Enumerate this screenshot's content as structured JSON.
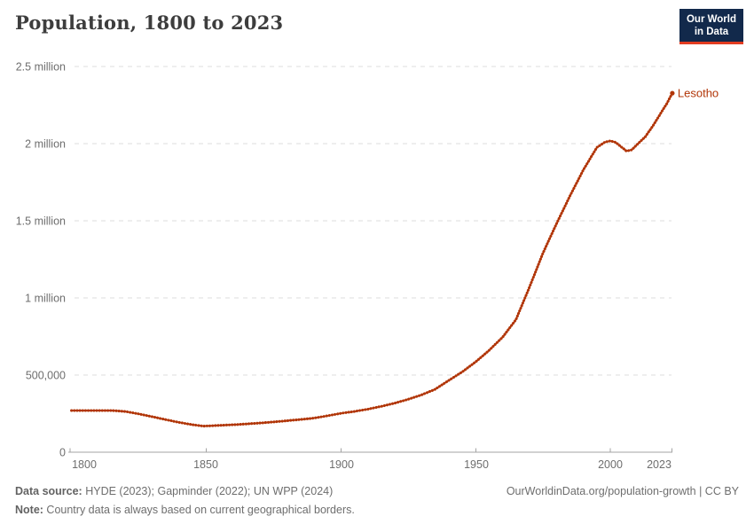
{
  "header": {
    "title": "Population, 1800 to 2023",
    "logo": {
      "line1": "Our World",
      "line2": "in Data"
    }
  },
  "chart_data": {
    "type": "line",
    "title": "Population, 1800 to 2023",
    "xlabel": "",
    "ylabel": "",
    "x_range": [
      1800,
      2023
    ],
    "y_range": [
      0,
      2500000
    ],
    "grid": "horizontal dashed",
    "legend_position": "end-of-line label",
    "x_tick_labels": [
      "1800",
      "1850",
      "1900",
      "1950",
      "2000",
      "2023"
    ],
    "y_tick_labels": [
      "2.5 million",
      "2 million",
      "1.5 million",
      "1 million",
      "500,000",
      "0"
    ],
    "y_tick_values": [
      2500000,
      2000000,
      1500000,
      1000000,
      500000,
      0
    ],
    "line_color": "#b13507",
    "series": [
      {
        "name": "Lesotho",
        "color": "#b13507",
        "points": [
          [
            1800,
            270000
          ],
          [
            1805,
            270000
          ],
          [
            1810,
            270000
          ],
          [
            1815,
            270000
          ],
          [
            1820,
            264000
          ],
          [
            1825,
            248000
          ],
          [
            1830,
            230000
          ],
          [
            1835,
            211000
          ],
          [
            1840,
            193000
          ],
          [
            1845,
            178000
          ],
          [
            1849,
            169000
          ],
          [
            1855,
            174000
          ],
          [
            1860,
            178000
          ],
          [
            1865,
            183000
          ],
          [
            1870,
            189000
          ],
          [
            1875,
            196000
          ],
          [
            1880,
            204000
          ],
          [
            1885,
            212000
          ],
          [
            1890,
            221000
          ],
          [
            1895,
            236000
          ],
          [
            1900,
            252000
          ],
          [
            1905,
            264000
          ],
          [
            1910,
            279000
          ],
          [
            1915,
            297000
          ],
          [
            1920,
            318000
          ],
          [
            1925,
            343000
          ],
          [
            1930,
            372000
          ],
          [
            1935,
            408000
          ],
          [
            1940,
            465000
          ],
          [
            1945,
            520000
          ],
          [
            1950,
            585000
          ],
          [
            1955,
            660000
          ],
          [
            1960,
            745000
          ],
          [
            1965,
            860000
          ],
          [
            1970,
            1070000
          ],
          [
            1975,
            1290000
          ],
          [
            1980,
            1480000
          ],
          [
            1985,
            1660000
          ],
          [
            1990,
            1830000
          ],
          [
            1995,
            1975000
          ],
          [
            1998,
            2010000
          ],
          [
            2000,
            2018000
          ],
          [
            2002,
            2008000
          ],
          [
            2004,
            1980000
          ],
          [
            2006,
            1952000
          ],
          [
            2008,
            1960000
          ],
          [
            2010,
            1995000
          ],
          [
            2013,
            2045000
          ],
          [
            2016,
            2120000
          ],
          [
            2019,
            2205000
          ],
          [
            2021,
            2260000
          ],
          [
            2023,
            2327000
          ]
        ]
      }
    ]
  },
  "footer": {
    "source_label": "Data source:",
    "source_text": " HYDE (2023); Gapminder (2022); UN WPP (2024)",
    "note_label": "Note:",
    "note_text": " Country data is always based on current geographical borders.",
    "citation": "OurWorldinData.org/population-growth | CC BY"
  }
}
